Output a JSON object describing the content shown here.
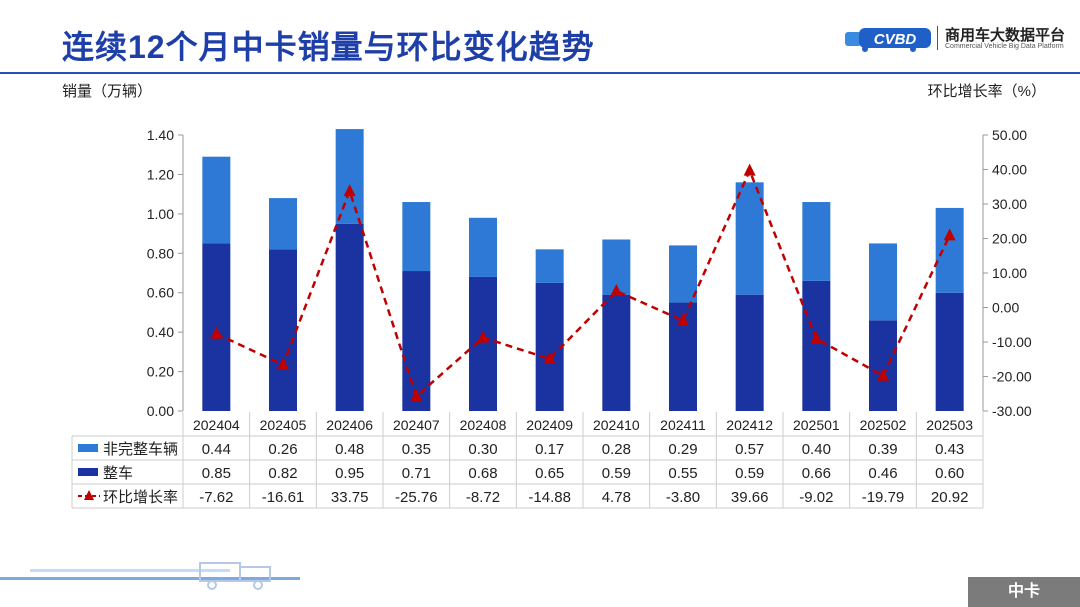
{
  "header": {
    "title": "连续12个月中卡销量与环比变化趋势",
    "logo_cn": "商用车大数据平台",
    "logo_en": "Commercial Vehicle Big Data Platform",
    "logo_mark": "CVBD"
  },
  "footer": {
    "label": "中卡"
  },
  "chart_data": {
    "type": "bar",
    "stacked": true,
    "ylabel": "销量（万辆）",
    "y2label": "环比增长率（%）",
    "ylim": [
      0,
      1.4
    ],
    "y2lim": [
      -30,
      50
    ],
    "yticks": [
      "0.00",
      "0.20",
      "0.40",
      "0.60",
      "0.80",
      "1.00",
      "1.20",
      "1.40"
    ],
    "y2ticks": [
      "-30.00",
      "-20.00",
      "-10.00",
      "0.00",
      "10.00",
      "20.00",
      "30.00",
      "40.00",
      "50.00"
    ],
    "categories": [
      "202404",
      "202405",
      "202406",
      "202407",
      "202408",
      "202409",
      "202410",
      "202411",
      "202412",
      "202501",
      "202502",
      "202503"
    ],
    "series": [
      {
        "name": "整车",
        "type": "bar",
        "color": "#1a33a0",
        "values": [
          0.85,
          0.82,
          0.95,
          0.71,
          0.68,
          0.65,
          0.59,
          0.55,
          0.59,
          0.66,
          0.46,
          0.6
        ],
        "labels": [
          "0.85",
          "0.82",
          "0.95",
          "0.71",
          "0.68",
          "0.65",
          "0.59",
          "0.55",
          "0.59",
          "0.66",
          "0.46",
          "0.60"
        ]
      },
      {
        "name": "非完整车辆",
        "type": "bar",
        "color": "#2e79d6",
        "values": [
          0.44,
          0.26,
          0.48,
          0.35,
          0.3,
          0.17,
          0.28,
          0.29,
          0.57,
          0.4,
          0.39,
          0.43
        ],
        "labels": [
          "0.44",
          "0.26",
          "0.48",
          "0.35",
          "0.30",
          "0.17",
          "0.28",
          "0.29",
          "0.57",
          "0.40",
          "0.39",
          "0.43"
        ]
      },
      {
        "name": "环比增长率",
        "type": "line",
        "axis": "right",
        "color": "#c00000",
        "values": [
          -7.62,
          -16.61,
          33.75,
          -25.76,
          -8.72,
          -14.88,
          4.78,
          -3.8,
          39.66,
          -9.02,
          -19.79,
          20.92
        ],
        "labels": [
          "-7.62",
          "-16.61",
          "33.75",
          "-25.76",
          "-8.72",
          "-14.88",
          "4.78",
          "-3.80",
          "39.66",
          "-9.02",
          "-19.79",
          "20.92"
        ]
      }
    ],
    "table_rows": [
      "非完整车辆",
      "整车",
      "环比增长率"
    ],
    "grid": false
  }
}
